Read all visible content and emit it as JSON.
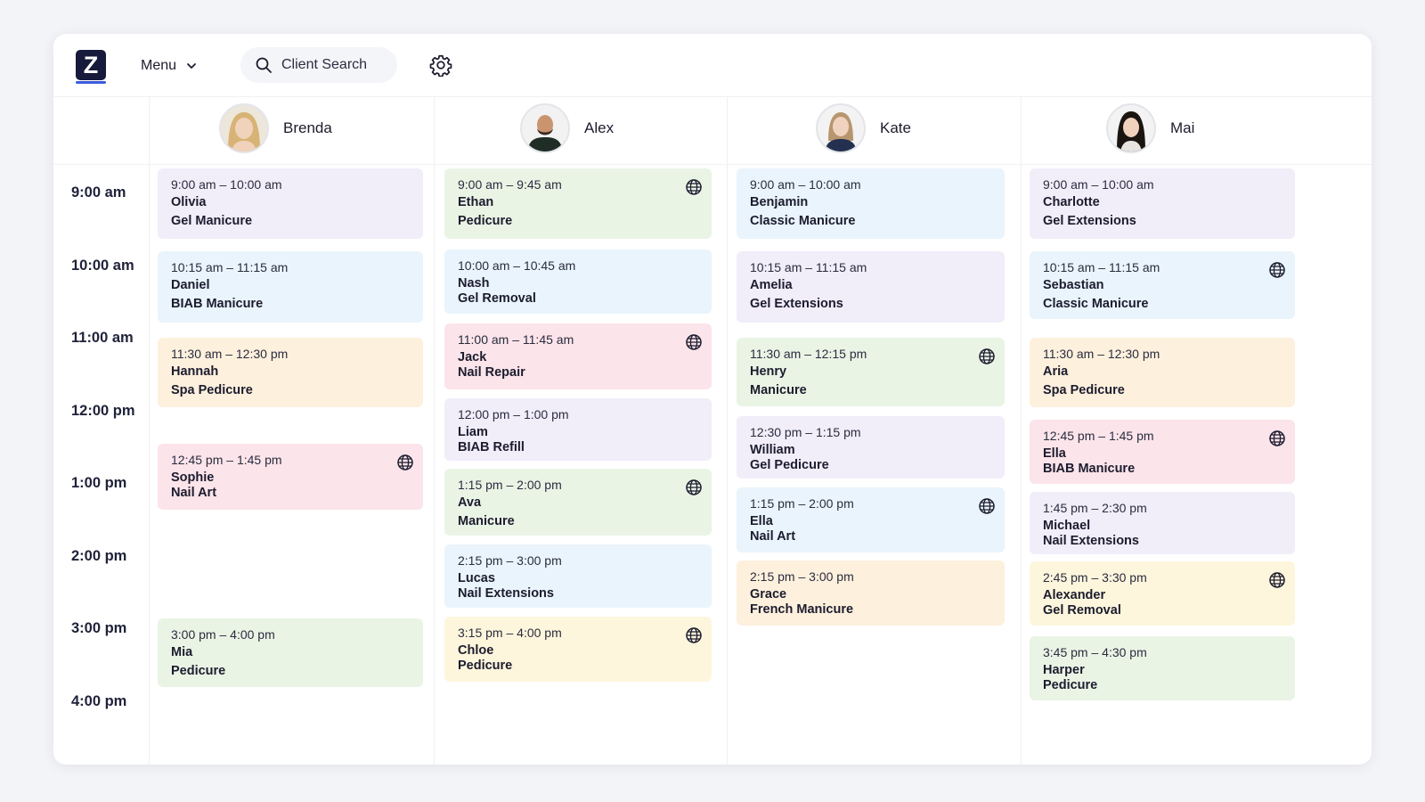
{
  "app": {
    "logo_letter": "Z",
    "menu_label": "Menu",
    "search_placeholder": "Client Search"
  },
  "staff": [
    {
      "name": "Brenda"
    },
    {
      "name": "Alex"
    },
    {
      "name": "Kate"
    },
    {
      "name": "Mai"
    }
  ],
  "times": [
    "9:00 am",
    "10:00 am",
    "11:00 am",
    "12:00 pm",
    "1:00 pm",
    "2:00 pm",
    "3:00 pm",
    "4:00 pm"
  ],
  "columns": [
    [
      {
        "time": "9:00 am – 10:00 am",
        "client": "Olivia",
        "service": "Gel Manicure",
        "color": "purple",
        "online": false
      },
      {
        "time": "10:15 am – 11:15 am",
        "client": "Daniel",
        "service": "BIAB Manicure",
        "color": "blue",
        "online": false
      },
      {
        "time": "11:30 am – 12:30 pm",
        "client": "Hannah",
        "service": "Spa Pedicure",
        "color": "orange",
        "online": false
      },
      {
        "time": "12:45 pm – 1:45 pm",
        "client": "Sophie",
        "service": "Nail Art",
        "color": "pink",
        "online": true
      },
      {
        "time": "3:00 pm – 4:00 pm",
        "client": "Mia",
        "service": "Pedicure",
        "color": "green",
        "online": false
      }
    ],
    [
      {
        "time": "9:00 am – 9:45 am",
        "client": "Ethan",
        "service": "Pedicure",
        "color": "green",
        "online": true
      },
      {
        "time": "10:00 am – 10:45 am",
        "client": "Nash",
        "service": "Gel Removal",
        "color": "blue",
        "online": false
      },
      {
        "time": "11:00 am – 11:45 am",
        "client": "Jack",
        "service": "Nail Repair",
        "color": "pink",
        "online": true
      },
      {
        "time": "12:00 pm – 1:00 pm",
        "client": "Liam",
        "service": "BIAB Refill",
        "color": "purple",
        "online": false
      },
      {
        "time": "1:15 pm – 2:00 pm",
        "client": "Ava",
        "service": "Manicure",
        "color": "green",
        "online": true
      },
      {
        "time": "2:15 pm – 3:00 pm",
        "client": "Lucas",
        "service": "Nail Extensions",
        "color": "blue",
        "online": false
      },
      {
        "time": "3:15 pm – 4:00 pm",
        "client": "Chloe",
        "service": "Pedicure",
        "color": "yellow",
        "online": true
      }
    ],
    [
      {
        "time": "9:00 am – 10:00 am",
        "client": "Benjamin",
        "service": "Classic Manicure",
        "color": "blue",
        "online": false
      },
      {
        "time": "10:15 am – 11:15 am",
        "client": "Amelia",
        "service": "Gel Extensions",
        "color": "purple",
        "online": false
      },
      {
        "time": "11:30 am – 12:15 pm",
        "client": "Henry",
        "service": "Manicure",
        "color": "green",
        "online": true
      },
      {
        "time": "12:30 pm – 1:15 pm",
        "client": "William",
        "service": "Gel Pedicure",
        "color": "purple",
        "online": false
      },
      {
        "time": "1:15 pm – 2:00 pm",
        "client": "Ella",
        "service": "Nail Art",
        "color": "blue",
        "online": true
      },
      {
        "time": "2:15 pm – 3:00 pm",
        "client": "Grace",
        "service": "French Manicure",
        "color": "orange",
        "online": false
      }
    ],
    [
      {
        "time": "9:00 am – 10:00 am",
        "client": "Charlotte",
        "service": "Gel Extensions",
        "color": "purple",
        "online": false
      },
      {
        "time": "10:15 am – 11:15 am",
        "client": "Sebastian",
        "service": "Classic Manicure",
        "color": "blue",
        "online": true
      },
      {
        "time": "11:30 am – 12:30 pm",
        "client": "Aria",
        "service": "Spa Pedicure",
        "color": "orange",
        "online": false
      },
      {
        "time": "12:45 pm – 1:45 pm",
        "client": "Ella",
        "service": "BIAB Manicure",
        "color": "pink",
        "online": true
      },
      {
        "time": "1:45 pm – 2:30 pm",
        "client": "Michael",
        "service": "Nail Extensions",
        "color": "purple",
        "online": false
      },
      {
        "time": "2:45 pm – 3:30 pm",
        "client": "Alexander",
        "service": "Gel Removal",
        "color": "yellow",
        "online": true
      },
      {
        "time": "3:45 pm – 4:30 pm",
        "client": "Harper",
        "service": "Pedicure",
        "color": "green",
        "online": false
      }
    ]
  ],
  "colors": {
    "purple": "#f1edf9",
    "blue": "#e9f4fc",
    "orange": "#fdf0dd",
    "pink": "#fbe4ea",
    "green": "#eaf4e5",
    "yellow": "#fdf6dc",
    "logo": "#171a3a"
  }
}
